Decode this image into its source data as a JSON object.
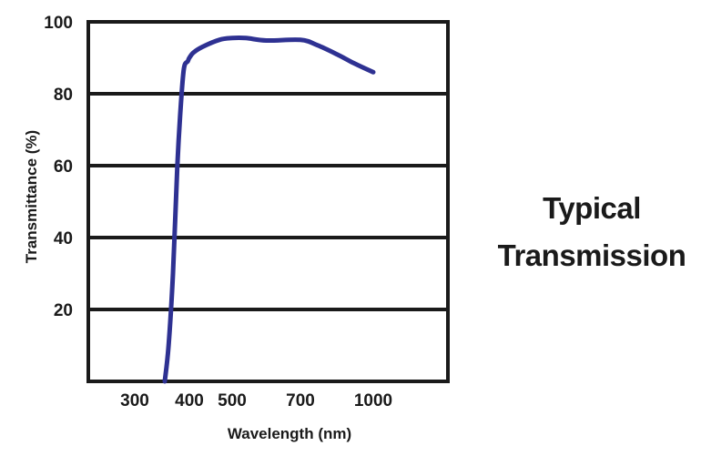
{
  "side_title": {
    "line1": "Typical",
    "line2": "Transmission"
  },
  "colors": {
    "curve": "#2e3192",
    "axes": "#1a1a1a",
    "background": "#ffffff"
  },
  "chart_data": {
    "type": "line",
    "xlabel": "Wavelength (nm)",
    "ylabel": "Transmittance (%)",
    "x_ticks": [
      300,
      400,
      500,
      700,
      1000
    ],
    "y_ticks": [
      20,
      40,
      60,
      80,
      100
    ],
    "ylim": [
      0,
      100
    ],
    "grid": "horizontal",
    "series": [
      {
        "x": [
          355,
          362,
          370,
          378,
          384,
          390,
          397,
          400,
          410,
          430,
          470,
          500,
          540,
          600,
          700,
          770,
          850,
          920,
          1000
        ],
        "y": [
          0,
          10,
          30,
          60,
          76,
          87,
          89,
          90,
          91.5,
          93,
          95,
          95.5,
          95.5,
          94.8,
          95,
          93.5,
          91,
          88.5,
          86
        ]
      }
    ]
  }
}
